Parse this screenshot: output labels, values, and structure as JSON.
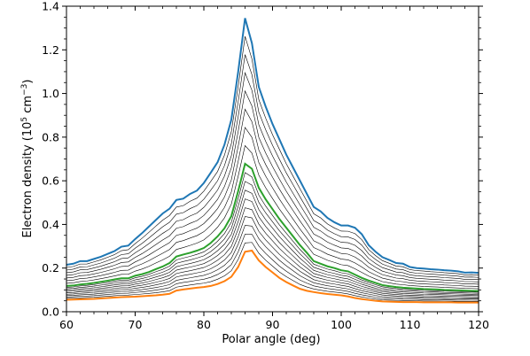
{
  "chart_data": {
    "type": "line",
    "xlabel": "Polar angle (deg)",
    "ylabel": {
      "prefix": "Electron density (10",
      "exp1": "5",
      "mid": " cm",
      "exp2": "−3",
      "suffix": ")"
    },
    "xlim": [
      60,
      120
    ],
    "ylim": [
      0,
      1.4
    ],
    "xticks": [
      "60",
      "70",
      "80",
      "90",
      "100",
      "110",
      "120"
    ],
    "yticks": [
      "0.0",
      "0.2",
      "0.4",
      "0.6",
      "0.8",
      "1.0",
      "1.2",
      "1.4"
    ],
    "grid": false,
    "x": [
      60,
      61,
      62,
      63,
      64,
      65,
      66,
      67,
      68,
      69,
      70,
      71,
      72,
      73,
      74,
      75,
      76,
      77,
      78,
      79,
      80,
      81,
      82,
      83,
      84,
      85,
      86,
      87,
      88,
      89,
      90,
      91,
      92,
      93,
      94,
      95,
      96,
      97,
      98,
      99,
      100,
      101,
      102,
      103,
      104,
      105,
      106,
      107,
      108,
      109,
      110,
      111,
      112,
      113,
      114,
      115,
      116,
      117,
      118,
      119,
      120
    ],
    "colors": {
      "top": "#1f77b4",
      "middle": "#2ca02c",
      "bottom": "#ff7f0e",
      "other": "#000000"
    },
    "top_curve": [
      0.215,
      0.22,
      0.232,
      0.232,
      0.242,
      0.252,
      0.265,
      0.278,
      0.298,
      0.303,
      0.333,
      0.36,
      0.39,
      0.42,
      0.45,
      0.472,
      0.512,
      0.518,
      0.54,
      0.555,
      0.59,
      0.637,
      0.685,
      0.765,
      0.88,
      1.1,
      1.345,
      1.23,
      1.03,
      0.94,
      0.86,
      0.79,
      0.72,
      0.66,
      0.6,
      0.54,
      0.48,
      0.46,
      0.43,
      0.41,
      0.395,
      0.395,
      0.385,
      0.355,
      0.305,
      0.275,
      0.25,
      0.237,
      0.223,
      0.22,
      0.205,
      0.2,
      0.198,
      0.195,
      0.193,
      0.19,
      0.188,
      0.185,
      0.179,
      0.18,
      0.178
    ],
    "middle_curve": [
      0.118,
      0.12,
      0.125,
      0.128,
      0.132,
      0.137,
      0.142,
      0.148,
      0.153,
      0.153,
      0.165,
      0.172,
      0.182,
      0.195,
      0.207,
      0.223,
      0.253,
      0.262,
      0.27,
      0.28,
      0.292,
      0.315,
      0.345,
      0.382,
      0.438,
      0.553,
      0.678,
      0.655,
      0.568,
      0.515,
      0.47,
      0.425,
      0.385,
      0.345,
      0.305,
      0.27,
      0.232,
      0.22,
      0.208,
      0.2,
      0.19,
      0.185,
      0.17,
      0.155,
      0.143,
      0.132,
      0.122,
      0.117,
      0.113,
      0.11,
      0.108,
      0.106,
      0.104,
      0.103,
      0.102,
      0.1,
      0.099,
      0.098,
      0.097,
      0.096,
      0.095
    ],
    "bottom_curve": [
      0.055,
      0.056,
      0.057,
      0.058,
      0.059,
      0.061,
      0.063,
      0.065,
      0.067,
      0.068,
      0.069,
      0.071,
      0.073,
      0.075,
      0.078,
      0.082,
      0.097,
      0.102,
      0.106,
      0.11,
      0.113,
      0.118,
      0.127,
      0.14,
      0.16,
      0.205,
      0.275,
      0.28,
      0.235,
      0.205,
      0.18,
      0.155,
      0.136,
      0.12,
      0.105,
      0.096,
      0.09,
      0.085,
      0.081,
      0.078,
      0.075,
      0.07,
      0.063,
      0.058,
      0.054,
      0.05,
      0.047,
      0.046,
      0.045,
      0.044,
      0.044,
      0.044,
      0.043,
      0.043,
      0.043,
      0.043,
      0.043,
      0.042,
      0.042,
      0.042,
      0.042
    ],
    "series": [
      {
        "values": [
          0.215,
          0.22,
          0.232,
          0.232,
          0.242,
          0.252,
          0.265,
          0.278,
          0.298,
          0.303,
          0.333,
          0.36,
          0.39,
          0.42,
          0.45,
          0.472,
          0.512,
          0.518,
          0.54,
          0.555,
          0.59,
          0.637,
          0.685,
          0.765,
          0.88,
          1.1,
          1.345,
          1.23,
          1.03,
          0.94,
          0.86,
          0.79,
          0.72,
          0.66,
          0.6,
          0.54,
          0.48,
          0.46,
          0.43,
          0.41,
          0.395,
          0.395,
          0.385,
          0.355,
          0.305,
          0.275,
          0.25,
          0.237,
          0.223,
          0.22,
          0.205,
          0.2,
          0.198,
          0.195,
          0.193,
          0.19,
          0.188,
          0.185,
          0.179,
          0.18,
          0.178
        ]
      },
      {
        "values": [
          0.118,
          0.12,
          0.125,
          0.128,
          0.132,
          0.137,
          0.142,
          0.148,
          0.153,
          0.153,
          0.165,
          0.172,
          0.182,
          0.195,
          0.207,
          0.223,
          0.253,
          0.262,
          0.27,
          0.28,
          0.292,
          0.315,
          0.345,
          0.382,
          0.438,
          0.553,
          0.678,
          0.655,
          0.568,
          0.515,
          0.47,
          0.425,
          0.385,
          0.345,
          0.305,
          0.27,
          0.232,
          0.22,
          0.208,
          0.2,
          0.19,
          0.185,
          0.17,
          0.155,
          0.143,
          0.132,
          0.122,
          0.117,
          0.113,
          0.11,
          0.108,
          0.106,
          0.104,
          0.103,
          0.102,
          0.1,
          0.099,
          0.098,
          0.097,
          0.096,
          0.095
        ]
      },
      {
        "values": [
          0.055,
          0.056,
          0.057,
          0.058,
          0.059,
          0.061,
          0.063,
          0.065,
          0.067,
          0.068,
          0.069,
          0.071,
          0.073,
          0.075,
          0.078,
          0.082,
          0.097,
          0.102,
          0.106,
          0.11,
          0.113,
          0.118,
          0.127,
          0.14,
          0.16,
          0.205,
          0.275,
          0.28,
          0.235,
          0.205,
          0.18,
          0.155,
          0.136,
          0.12,
          0.105,
          0.096,
          0.09,
          0.085,
          0.081,
          0.078,
          0.075,
          0.07,
          0.063,
          0.058,
          0.054,
          0.05,
          0.047,
          0.046,
          0.045,
          0.044,
          0.044,
          0.044,
          0.043,
          0.043,
          0.043,
          0.043,
          0.043,
          0.042,
          0.042,
          0.042,
          0.042
        ]
      }
    ],
    "n_thin_upper": 7,
    "n_thin_lower": 9
  }
}
